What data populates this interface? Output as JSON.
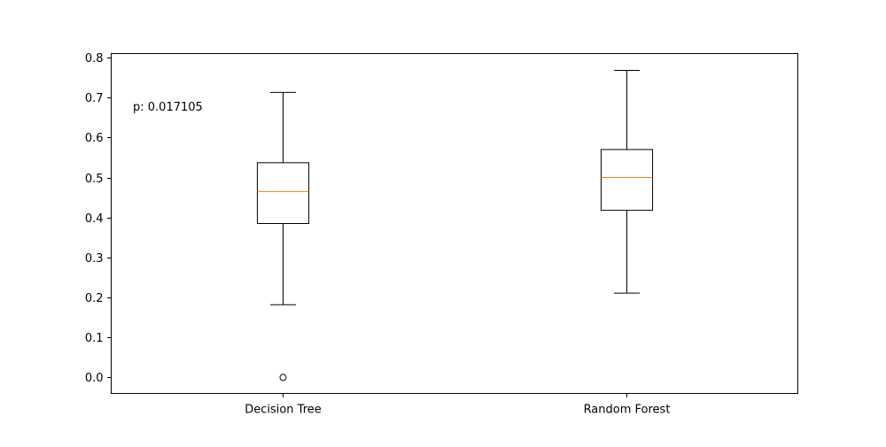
{
  "chart_data": {
    "type": "boxplot",
    "title": "",
    "xlabel": "",
    "ylabel": "",
    "ylim": [
      -0.04,
      0.81
    ],
    "yticks": [
      0.0,
      0.1,
      0.2,
      0.3,
      0.4,
      0.5,
      0.6,
      0.7,
      0.8
    ],
    "ytick_labels": [
      "0.0",
      "0.1",
      "0.2",
      "0.3",
      "0.4",
      "0.5",
      "0.6",
      "0.7",
      "0.8"
    ],
    "grid": false,
    "categories": [
      "Decision Tree",
      "Random Forest"
    ],
    "boxes": [
      {
        "whisker_low": 0.182,
        "q1": 0.385,
        "median": 0.465,
        "q3": 0.537,
        "whisker_high": 0.713,
        "outliers": [
          0.0
        ]
      },
      {
        "whisker_low": 0.211,
        "q1": 0.418,
        "median": 0.5,
        "q3": 0.57,
        "whisker_high": 0.768,
        "outliers": []
      }
    ],
    "annotation": "p: 0.017105",
    "colors": {
      "box": "#000000",
      "median": "#ff7f0e",
      "axes": "#000000"
    }
  }
}
